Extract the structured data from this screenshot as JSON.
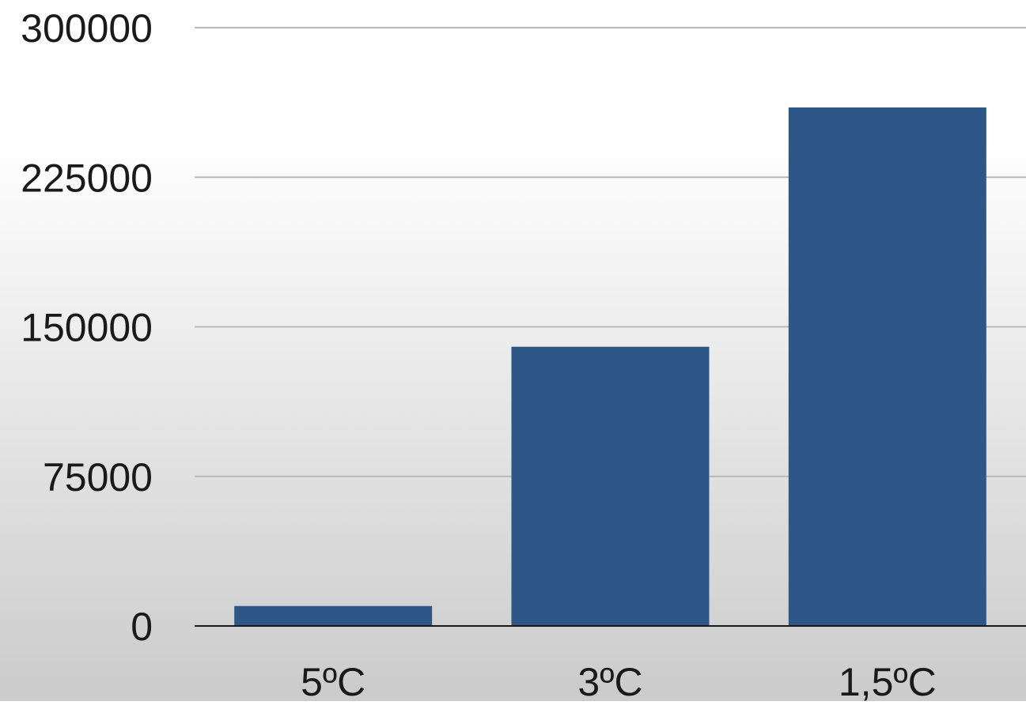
{
  "chart_data": {
    "type": "bar",
    "categories": [
      "5ºC",
      "3ºC",
      "1,5ºC"
    ],
    "values": [
      10000,
      140000,
      260000
    ],
    "ylim": [
      0,
      300000
    ],
    "yticks": [
      0,
      75000,
      150000,
      225000,
      300000
    ],
    "ytick_labels": [
      "0",
      "75000",
      "150000",
      "225000",
      "300000"
    ],
    "grid": true,
    "legend": "none",
    "bar_color": "#2e5788",
    "grid_color": "#b9b9b9",
    "axis_color": "#1a1a1a"
  }
}
